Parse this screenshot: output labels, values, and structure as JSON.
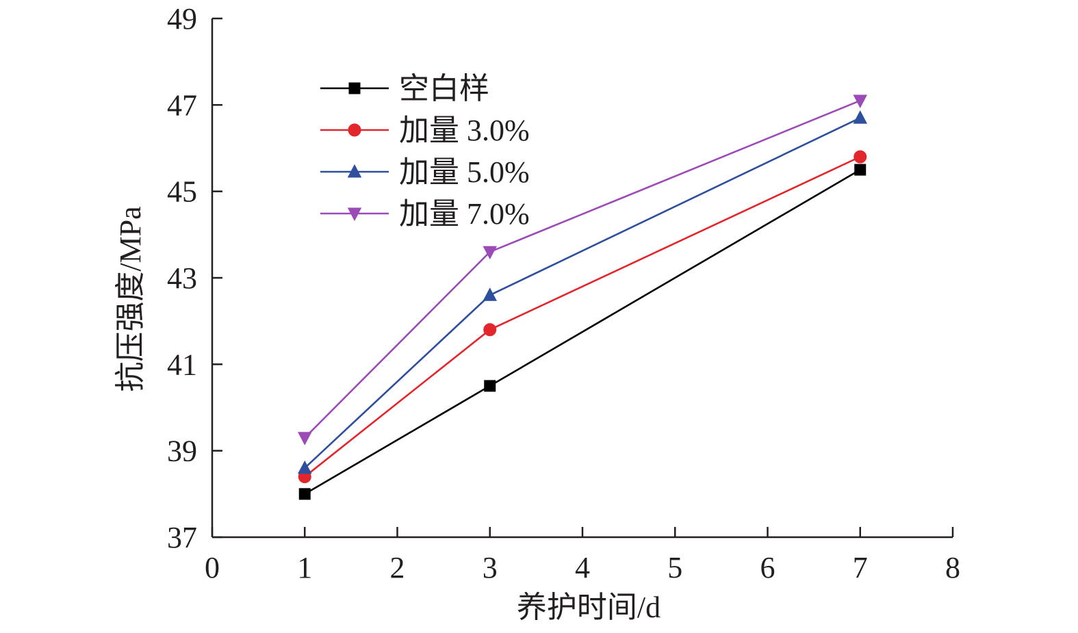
{
  "chart_data": {
    "type": "line",
    "xlabel": "养护时间/d",
    "ylabel": "抗压强度/MPa",
    "xlim": [
      0,
      8
    ],
    "ylim": [
      37,
      49
    ],
    "xticks": [
      "0",
      "1",
      "2",
      "3",
      "4",
      "5",
      "6",
      "7",
      "8"
    ],
    "yticks": [
      "37",
      "39",
      "41",
      "43",
      "45",
      "47",
      "49"
    ],
    "legend_position": "upper-left",
    "grid": false,
    "x": [
      1,
      3,
      7
    ],
    "series": [
      {
        "name": "空白样",
        "values": [
          38.0,
          40.5,
          45.5
        ],
        "color": "#000000",
        "marker": "square"
      },
      {
        "name": "加量 3.0%",
        "values": [
          38.4,
          41.8,
          45.8
        ],
        "color": "#e3262c",
        "marker": "circle"
      },
      {
        "name": "加量 5.0%",
        "values": [
          38.6,
          42.6,
          46.7
        ],
        "color": "#2e4e9e",
        "marker": "triangle-up"
      },
      {
        "name": "加量 7.0%",
        "values": [
          39.3,
          43.6,
          47.1
        ],
        "color": "#9b4ab8",
        "marker": "triangle-down"
      }
    ]
  }
}
